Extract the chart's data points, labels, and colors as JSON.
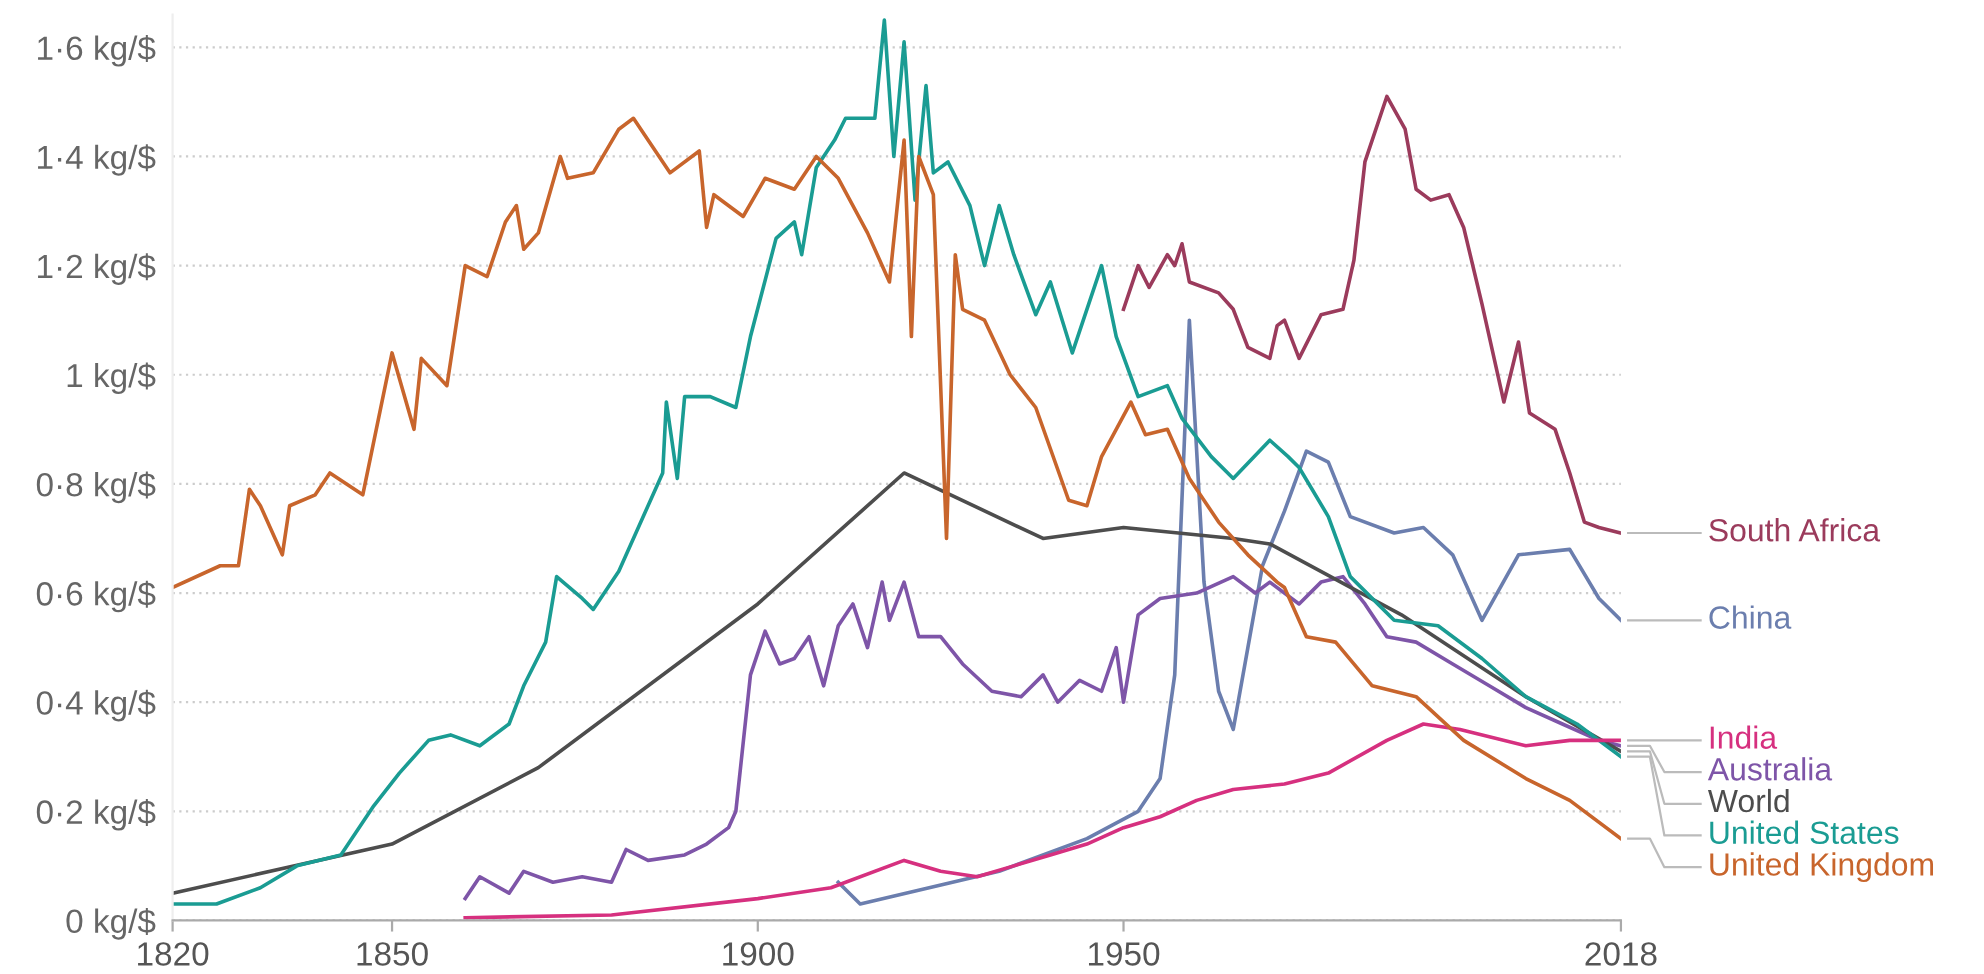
{
  "chart_data": {
    "type": "line",
    "xlim": [
      1820,
      2018
    ],
    "xticks": [
      1820,
      1850,
      1900,
      1950,
      2018
    ],
    "ylim": [
      0,
      1.66
    ],
    "yticks": [
      {
        "value": 0,
        "label": "0 kg/$"
      },
      {
        "value": 0.2,
        "label": "0·2 kg/$"
      },
      {
        "value": 0.4,
        "label": "0·4 kg/$"
      },
      {
        "value": 0.6,
        "label": "0·6 kg/$"
      },
      {
        "value": 0.8,
        "label": "0·8 kg/$"
      },
      {
        "value": 1,
        "label": "1 kg/$"
      },
      {
        "value": 1.2,
        "label": "1·2 kg/$"
      },
      {
        "value": 1.4,
        "label": "1·4 kg/$"
      },
      {
        "value": 1.6,
        "label": "1·6 kg/$"
      }
    ],
    "grid": "y",
    "legend": false,
    "series": [
      {
        "name": "South Africa",
        "color": "#9b3b5c",
        "x": [
          1950,
          1952,
          1953.5,
          1956,
          1957,
          1958,
          1959,
          1963,
          1965,
          1967,
          1970,
          1971,
          1972,
          1974,
          1977,
          1980,
          1981.5,
          1983,
          1986,
          1988.5,
          1990,
          1992,
          1994.5,
          1996.5,
          1999,
          2002,
          2004,
          2005.5,
          2009,
          2011,
          2013,
          2015,
          2018
        ],
        "values": [
          1.12,
          1.2,
          1.16,
          1.22,
          1.2,
          1.24,
          1.17,
          1.15,
          1.12,
          1.05,
          1.03,
          1.09,
          1.1,
          1.03,
          1.11,
          1.12,
          1.21,
          1.39,
          1.51,
          1.45,
          1.34,
          1.32,
          1.33,
          1.27,
          1.13,
          0.95,
          1.06,
          0.93,
          0.9,
          0.82,
          0.73,
          0.72,
          0.71
        ]
      },
      {
        "name": "China",
        "color": "#6b7eae",
        "x": [
          1911,
          1914,
          1933,
          1945,
          1952,
          1955,
          1957,
          1959,
          1961,
          1963,
          1965,
          1967,
          1969,
          1972,
          1975,
          1978,
          1981,
          1987,
          1991,
          1995,
          1999,
          2004,
          2011,
          2015,
          2018
        ],
        "values": [
          0.07,
          0.03,
          0.09,
          0.15,
          0.2,
          0.26,
          0.45,
          1.1,
          0.62,
          0.42,
          0.35,
          0.5,
          0.65,
          0.75,
          0.86,
          0.84,
          0.74,
          0.71,
          0.72,
          0.67,
          0.55,
          0.67,
          0.68,
          0.59,
          0.55
        ]
      },
      {
        "name": "Australia",
        "color": "#7e55a8",
        "x": [
          1860,
          1862,
          1866,
          1868,
          1872,
          1876,
          1880,
          1882,
          1885,
          1890,
          1893,
          1896,
          1897,
          1899,
          1901,
          1903,
          1905,
          1907,
          1909,
          1911,
          1913,
          1915,
          1917,
          1918,
          1920,
          1922,
          1925,
          1928,
          1932,
          1936,
          1939,
          1941,
          1944,
          1947,
          1949,
          1950,
          1952,
          1955,
          1960,
          1965,
          1968,
          1970,
          1974,
          1977,
          1980,
          1983,
          1986,
          1990,
          1995,
          2000,
          2005,
          2010,
          2015,
          2018
        ],
        "values": [
          0.04,
          0.08,
          0.05,
          0.09,
          0.07,
          0.08,
          0.07,
          0.13,
          0.11,
          0.12,
          0.14,
          0.17,
          0.2,
          0.45,
          0.53,
          0.47,
          0.48,
          0.52,
          0.43,
          0.54,
          0.58,
          0.5,
          0.62,
          0.55,
          0.62,
          0.52,
          0.52,
          0.47,
          0.42,
          0.41,
          0.45,
          0.4,
          0.44,
          0.42,
          0.5,
          0.4,
          0.56,
          0.59,
          0.6,
          0.63,
          0.6,
          0.62,
          0.58,
          0.62,
          0.63,
          0.58,
          0.52,
          0.51,
          0.47,
          0.43,
          0.39,
          0.36,
          0.33,
          0.32
        ]
      },
      {
        "name": "World",
        "color": "#4d4d4d",
        "x": [
          1820,
          1850,
          1870,
          1900,
          1920,
          1939,
          1950,
          1965,
          1970,
          1988,
          2005,
          2018
        ],
        "values": [
          0.05,
          0.14,
          0.28,
          0.58,
          0.82,
          0.7,
          0.72,
          0.7,
          0.69,
          0.56,
          0.41,
          0.31
        ]
      },
      {
        "name": "United States",
        "color": "#1a9c93",
        "x": [
          1820,
          1826,
          1832,
          1837,
          1843,
          1847.5,
          1851,
          1855,
          1858,
          1862,
          1866,
          1868,
          1871,
          1872.5,
          1876,
          1877.5,
          1881,
          1887,
          1887.5,
          1889,
          1890,
          1893.5,
          1897,
          1899,
          1902.5,
          1905,
          1906,
          1908,
          1910.5,
          1912,
          1916,
          1917.3,
          1918.6,
          1920,
          1921.5,
          1923,
          1924,
          1926,
          1929,
          1931,
          1933,
          1935,
          1938,
          1940,
          1943,
          1947,
          1949,
          1952,
          1956,
          1958,
          1962,
          1965,
          1970,
          1972.5,
          1974,
          1978,
          1981,
          1987,
          1993,
          1999,
          2005,
          2012,
          2018
        ],
        "values": [
          0.03,
          0.03,
          0.06,
          0.1,
          0.12,
          0.21,
          0.27,
          0.33,
          0.34,
          0.32,
          0.36,
          0.43,
          0.51,
          0.63,
          0.59,
          0.57,
          0.64,
          0.82,
          0.95,
          0.81,
          0.96,
          0.96,
          0.94,
          1.07,
          1.25,
          1.28,
          1.22,
          1.38,
          1.43,
          1.47,
          1.47,
          1.65,
          1.4,
          1.61,
          1.32,
          1.53,
          1.37,
          1.39,
          1.31,
          1.2,
          1.31,
          1.22,
          1.11,
          1.17,
          1.04,
          1.2,
          1.07,
          0.96,
          0.98,
          0.92,
          0.85,
          0.81,
          0.88,
          0.85,
          0.83,
          0.74,
          0.63,
          0.55,
          0.54,
          0.48,
          0.41,
          0.36,
          0.3
        ]
      },
      {
        "name": "India",
        "color": "#d6307f",
        "x": [
          1860,
          1880,
          1900,
          1910,
          1920,
          1925,
          1930,
          1935,
          1940,
          1945,
          1950,
          1955,
          1960,
          1965,
          1972,
          1978,
          1986,
          1991,
          1996,
          2005,
          2011,
          2018
        ],
        "values": [
          0.005,
          0.01,
          0.04,
          0.06,
          0.11,
          0.09,
          0.08,
          0.1,
          0.12,
          0.14,
          0.17,
          0.19,
          0.22,
          0.24,
          0.25,
          0.27,
          0.33,
          0.36,
          0.35,
          0.32,
          0.33,
          0.33
        ]
      },
      {
        "name": "United Kingdom",
        "color": "#c8652c",
        "x": [
          1820,
          1826.5,
          1829,
          1830.5,
          1832,
          1835,
          1836,
          1839.5,
          1841.5,
          1846,
          1850,
          1853,
          1854,
          1857.5,
          1860,
          1863,
          1865.5,
          1867,
          1868,
          1870,
          1873,
          1874,
          1877.5,
          1881,
          1883,
          1888,
          1892,
          1893,
          1894,
          1898,
          1901,
          1905,
          1908,
          1911,
          1915,
          1918,
          1920,
          1921,
          1922,
          1924,
          1925.8,
          1927,
          1928,
          1931,
          1934.5,
          1938,
          1942.5,
          1945,
          1947,
          1951,
          1953,
          1956,
          1959,
          1963,
          1967,
          1971,
          1972,
          1975,
          1979,
          1984,
          1990,
          1996.5,
          2005,
          2011,
          2018
        ],
        "values": [
          0.61,
          0.65,
          0.65,
          0.79,
          0.76,
          0.67,
          0.76,
          0.78,
          0.82,
          0.78,
          1.04,
          0.9,
          1.03,
          0.98,
          1.2,
          1.18,
          1.28,
          1.31,
          1.23,
          1.26,
          1.4,
          1.36,
          1.37,
          1.45,
          1.47,
          1.37,
          1.41,
          1.27,
          1.33,
          1.29,
          1.36,
          1.34,
          1.4,
          1.36,
          1.26,
          1.17,
          1.43,
          1.07,
          1.4,
          1.33,
          0.7,
          1.22,
          1.12,
          1.1,
          1.0,
          0.94,
          0.77,
          0.76,
          0.85,
          0.95,
          0.89,
          0.9,
          0.81,
          0.73,
          0.67,
          0.62,
          0.61,
          0.52,
          0.51,
          0.43,
          0.41,
          0.33,
          0.26,
          0.22,
          0.15
        ]
      }
    ]
  }
}
